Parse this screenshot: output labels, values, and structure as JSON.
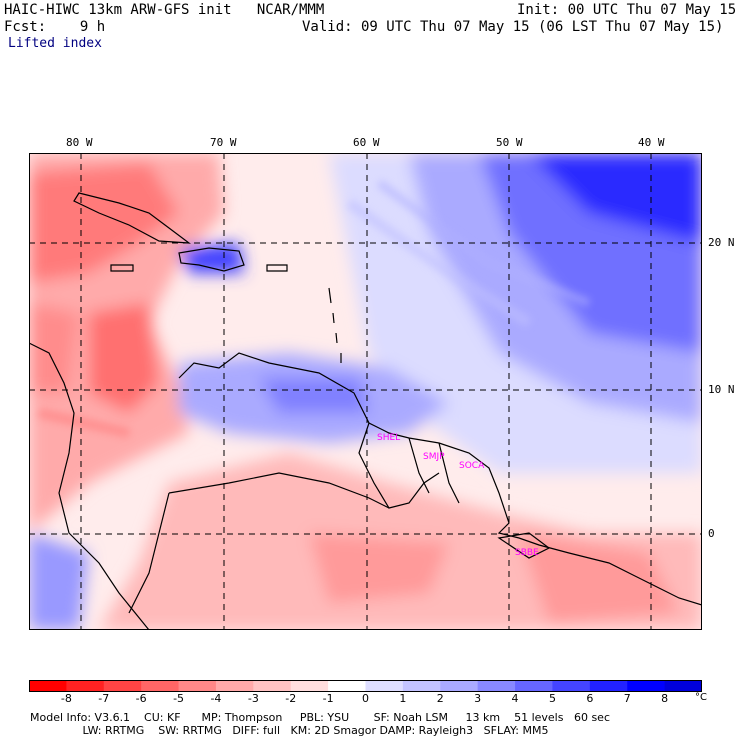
{
  "header": {
    "title_line": "HAIC-HIWC 13km ARW-GFS init   NCAR/MMM",
    "init": "Init: 00 UTC Thu 07 May 15",
    "fcst": "Fcst:    9 h",
    "valid": "Valid: 09 UTC Thu 07 May 15 (06 LST Thu 07 May 15)",
    "field": "Lifted index"
  },
  "map": {
    "lon_labels": [
      "80 W",
      "70 W",
      "60 W",
      "50 W",
      "40 W"
    ],
    "lat_labels": [
      "20 N",
      "10 N",
      "0"
    ],
    "stations": [
      "SHEL",
      "SMJP",
      "SOCA",
      "SBBE"
    ],
    "colors": {
      "strong_neg": "#ff6666",
      "neg": "#ffaaaa",
      "light_neg": "#ffdcdc",
      "neutral": "#ffffff",
      "light_pos": "#dcdcff",
      "pos": "#9999ff",
      "strong_pos": "#3333ff",
      "max_pos": "#0000ff",
      "station": "#ff00ff"
    }
  },
  "colorbar": {
    "ticks": [
      "-8",
      "-7",
      "-6",
      "-5",
      "-4",
      "-3",
      "-2",
      "-1",
      "0",
      "1",
      "2",
      "3",
      "4",
      "5",
      "6",
      "7",
      "8"
    ],
    "unit": "°C",
    "colors": [
      "#ff0000",
      "#ff2222",
      "#ff4444",
      "#ff6666",
      "#ff8888",
      "#ffaaaa",
      "#ffc4c4",
      "#ffdede",
      "#ffffff",
      "#dedeff",
      "#c4c4ff",
      "#aaaaff",
      "#8888ff",
      "#6666ff",
      "#4444ff",
      "#2222ff",
      "#0000ff",
      "#0000dd"
    ]
  },
  "footer": {
    "line1": "Model Info: V3.6.1    CU: KF      MP: Thompson     PBL: YSU       SF: Noah LSM     13 km    51 levels   60 sec",
    "line2": "               LW: RRTMG    SW: RRTMG   DIFF: full   KM: 2D Smagor DAMP: Rayleigh3   SFLAY: MM5"
  }
}
